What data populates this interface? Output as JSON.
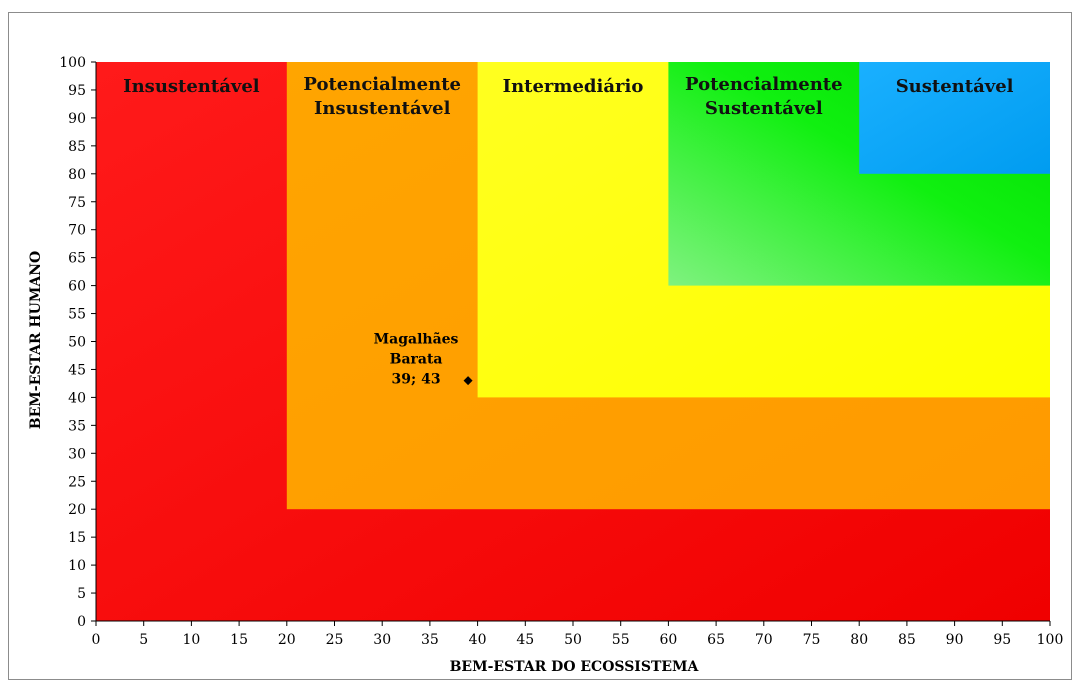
{
  "chart_data": {
    "type": "scatter",
    "xlabel": "BEM-ESTAR DO ECOSSISTEMA",
    "ylabel": "BEM-ESTAR HUMANO",
    "xlim": [
      0,
      100
    ],
    "ylim": [
      0,
      100
    ],
    "xticks": [
      0,
      5,
      10,
      15,
      20,
      25,
      30,
      35,
      40,
      45,
      50,
      55,
      60,
      65,
      70,
      75,
      80,
      85,
      90,
      95,
      100
    ],
    "yticks": [
      0,
      5,
      10,
      15,
      20,
      25,
      30,
      35,
      40,
      45,
      50,
      55,
      60,
      65,
      70,
      75,
      80,
      85,
      90,
      95,
      100
    ],
    "grid": false,
    "regions": [
      {
        "name": "Insustentável",
        "lines": [
          "Insustentável"
        ],
        "x0": 0,
        "y0": 0,
        "color": "#ff0000"
      },
      {
        "name": "Potencialmente Insustentável",
        "lines": [
          "Potencialmente",
          "Insustentável"
        ],
        "x0": 20,
        "y0": 20,
        "color": "#ffa000"
      },
      {
        "name": "Intermediário",
        "lines": [
          "Intermediário"
        ],
        "x0": 40,
        "y0": 40,
        "color": "#ffff00"
      },
      {
        "name": "Potencialmente Sustentável",
        "lines": [
          "Potencialmente",
          "Sustentável"
        ],
        "x0": 60,
        "y0": 60,
        "color": "#22ee22"
      },
      {
        "name": "Sustentável",
        "lines": [
          "Sustentável"
        ],
        "x0": 80,
        "y0": 80,
        "color": "#00a8ff"
      }
    ],
    "points": [
      {
        "x": 39,
        "y": 43,
        "label_lines": [
          "Magalhães",
          "Barata",
          "39; 43"
        ]
      }
    ]
  }
}
